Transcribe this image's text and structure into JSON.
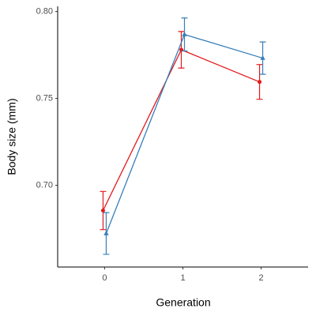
{
  "chart_data": {
    "type": "line",
    "x_label": "Generation",
    "y_label": "Body size (mm)",
    "x": [
      0,
      1,
      2
    ],
    "series": [
      {
        "color": "#e41a1c",
        "marker": "circle",
        "values": [
          0.6855,
          0.778,
          0.7595
        ],
        "errors": [
          0.011,
          0.0105,
          0.01
        ]
      },
      {
        "color": "#377eb8",
        "marker": "triangle",
        "values": [
          0.6723,
          0.7868,
          0.7732
        ],
        "errors": [
          0.012,
          0.0095,
          0.0093
        ]
      }
    ],
    "xlim": [
      -0.6,
      2.6
    ],
    "xticks": [
      0,
      1,
      2
    ],
    "ylim": [
      0.653,
      0.803
    ],
    "yticks": [
      {
        "value": 0.7,
        "label": "0.70"
      },
      0.75,
      {
        "value": 0.8,
        "label": "0.80"
      }
    ],
    "grid": false
  }
}
